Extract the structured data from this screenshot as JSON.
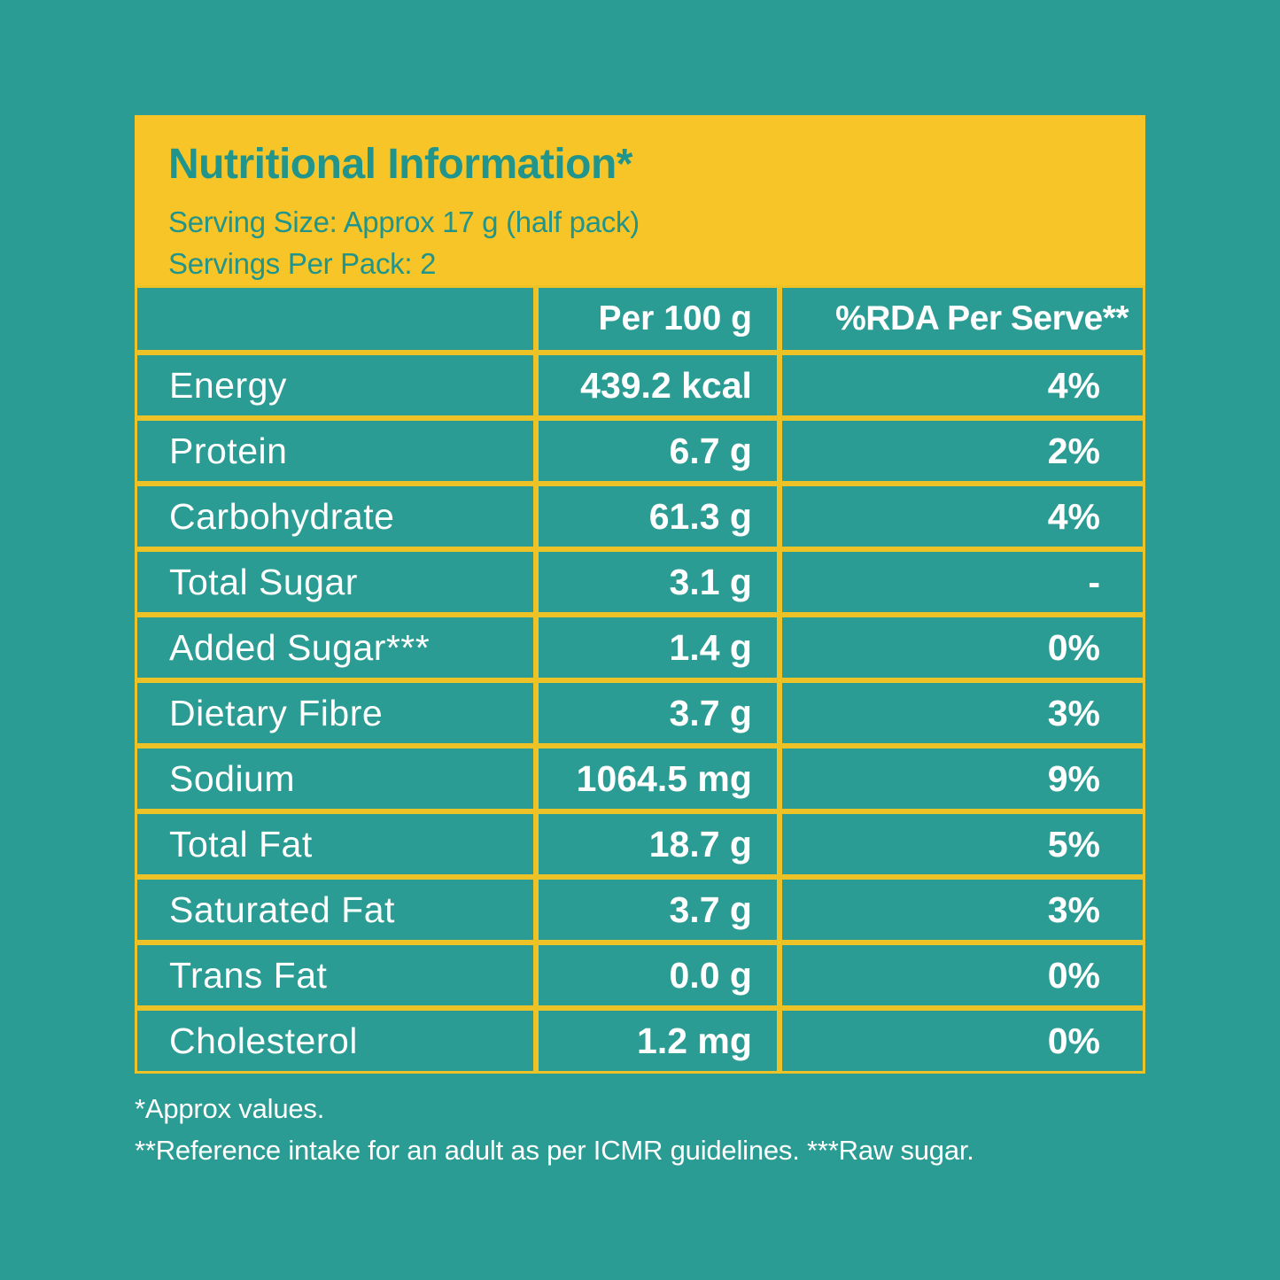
{
  "colors": {
    "background_teal": "#2B9C93",
    "header_yellow": "#F7C528",
    "table_border_yellow": "#ECC226",
    "header_text_teal": "#21948B",
    "table_text_white": "#FFFFFF"
  },
  "panel": {
    "title": "Nutritional Information*",
    "serving_size": "Serving Size: Approx 17 g (half pack)",
    "servings_per_pack": "Servings Per Pack: 2"
  },
  "table": {
    "columns": [
      "",
      "Per 100 g",
      "%RDA Per Serve**"
    ],
    "rows": [
      {
        "label": "Energy",
        "per_100g": "439.2 kcal",
        "rda_per_serve": "4%"
      },
      {
        "label": "Protein",
        "per_100g": "6.7 g",
        "rda_per_serve": "2%"
      },
      {
        "label": "Carbohydrate",
        "per_100g": "61.3 g",
        "rda_per_serve": "4%"
      },
      {
        "label": "Total Sugar",
        "per_100g": "3.1 g",
        "rda_per_serve": "-"
      },
      {
        "label": "Added Sugar***",
        "per_100g": "1.4 g",
        "rda_per_serve": "0%"
      },
      {
        "label": "Dietary Fibre",
        "per_100g": "3.7 g",
        "rda_per_serve": "3%"
      },
      {
        "label": "Sodium",
        "per_100g": "1064.5 mg",
        "rda_per_serve": "9%"
      },
      {
        "label": "Total Fat",
        "per_100g": "18.7 g",
        "rda_per_serve": "5%"
      },
      {
        "label": "Saturated Fat",
        "per_100g": "3.7 g",
        "rda_per_serve": "3%"
      },
      {
        "label": "Trans Fat",
        "per_100g": "0.0 g",
        "rda_per_serve": "0%"
      },
      {
        "label": "Cholesterol",
        "per_100g": "1.2 mg",
        "rda_per_serve": "0%"
      }
    ]
  },
  "footnotes": {
    "line1": "*Approx values.",
    "line2": "**Reference intake for an adult as per ICMR guidelines. ***Raw sugar."
  }
}
